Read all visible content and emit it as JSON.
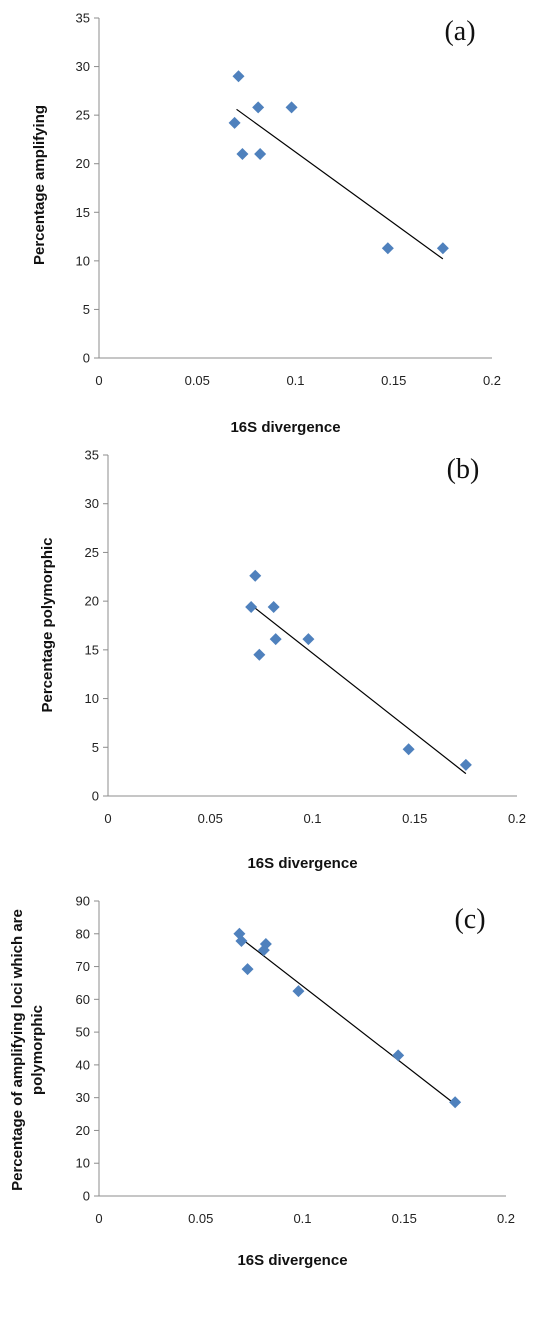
{
  "chart_data": [
    {
      "type": "scatter",
      "panel_label": "(a)",
      "xlabel": "16S divergence",
      "ylabel": "Percentage  amplifying",
      "xlim": [
        0,
        0.2
      ],
      "ylim": [
        0,
        35
      ],
      "x_ticks": [
        "0",
        "0.05",
        "0.1",
        "0.15",
        "0.2"
      ],
      "y_ticks": [
        "0",
        "5",
        "10",
        "15",
        "20",
        "25",
        "30",
        "35"
      ],
      "marker_color": "#4F81BD",
      "points": [
        {
          "x": 0.069,
          "y": 24.2
        },
        {
          "x": 0.071,
          "y": 29.0
        },
        {
          "x": 0.073,
          "y": 21.0
        },
        {
          "x": 0.081,
          "y": 25.8
        },
        {
          "x": 0.082,
          "y": 21.0
        },
        {
          "x": 0.098,
          "y": 25.8
        },
        {
          "x": 0.147,
          "y": 11.3
        },
        {
          "x": 0.175,
          "y": 11.3
        }
      ],
      "trendline": {
        "x": [
          0.07,
          0.175
        ],
        "y": [
          25.6,
          10.2
        ]
      }
    },
    {
      "type": "scatter",
      "panel_label": "(b)",
      "xlabel": "16S divergence",
      "ylabel": "Percentage  polymorphic",
      "xlim": [
        0,
        0.2
      ],
      "ylim": [
        0,
        35
      ],
      "x_ticks": [
        "0",
        "0.05",
        "0.1",
        "0.15",
        "0.2"
      ],
      "y_ticks": [
        "0",
        "5",
        "10",
        "15",
        "20",
        "25",
        "30",
        "35"
      ],
      "marker_color": "#4F81BD",
      "points": [
        {
          "x": 0.07,
          "y": 19.4
        },
        {
          "x": 0.072,
          "y": 22.6
        },
        {
          "x": 0.074,
          "y": 14.5
        },
        {
          "x": 0.081,
          "y": 19.4
        },
        {
          "x": 0.082,
          "y": 16.1
        },
        {
          "x": 0.098,
          "y": 16.1
        },
        {
          "x": 0.147,
          "y": 4.8
        },
        {
          "x": 0.175,
          "y": 3.2
        }
      ],
      "trendline": {
        "x": [
          0.07,
          0.175
        ],
        "y": [
          19.6,
          2.3
        ]
      }
    },
    {
      "type": "scatter",
      "panel_label": "(c)",
      "xlabel": "16S divergence",
      "ylabel_lines": [
        "Percentage of amplifying loci which are",
        "polymorphic"
      ],
      "xlim": [
        0,
        0.2
      ],
      "ylim": [
        0,
        90
      ],
      "x_ticks": [
        "0",
        "0.05",
        "0.1",
        "0.15",
        "0.2"
      ],
      "y_ticks": [
        "0",
        "10",
        "20",
        "30",
        "40",
        "50",
        "60",
        "70",
        "80",
        "90"
      ],
      "marker_color": "#4F81BD",
      "points": [
        {
          "x": 0.069,
          "y": 80.0
        },
        {
          "x": 0.07,
          "y": 77.8
        },
        {
          "x": 0.073,
          "y": 69.2
        },
        {
          "x": 0.081,
          "y": 75.0
        },
        {
          "x": 0.082,
          "y": 76.9
        },
        {
          "x": 0.098,
          "y": 62.5
        },
        {
          "x": 0.147,
          "y": 42.9
        },
        {
          "x": 0.175,
          "y": 28.6
        }
      ],
      "trendline": {
        "x": [
          0.07,
          0.175
        ],
        "y": [
          78.5,
          28.0
        ]
      }
    }
  ]
}
